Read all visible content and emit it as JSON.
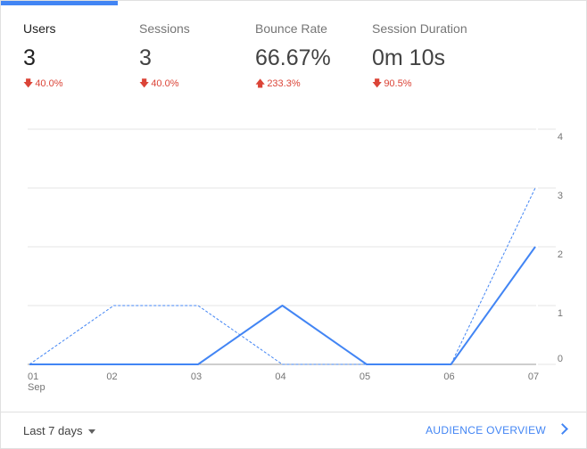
{
  "tabs": [
    {
      "label": "Users",
      "value": "3",
      "change": "40.0%",
      "direction": "down",
      "active": true
    },
    {
      "label": "Sessions",
      "value": "3",
      "change": "40.0%",
      "direction": "down",
      "active": false
    },
    {
      "label": "Bounce Rate",
      "value": "66.67%",
      "change": "233.3%",
      "direction": "up",
      "active": false
    },
    {
      "label": "Session Duration",
      "value": "0m 10s",
      "change": "90.5%",
      "direction": "down",
      "active": false
    }
  ],
  "chart_data": {
    "type": "line",
    "categories": [
      "01",
      "02",
      "03",
      "04",
      "05",
      "06",
      "07"
    ],
    "category_sublabel": "Sep",
    "y_ticks": [
      "0",
      "1",
      "2",
      "3",
      "4"
    ],
    "ylim": [
      0,
      4
    ],
    "grid": true,
    "series": [
      {
        "style": "solid",
        "color": "#4285f4",
        "values": [
          0,
          0,
          0,
          1,
          0,
          0,
          2
        ]
      },
      {
        "style": "dashed",
        "color": "#4285f4",
        "values": [
          0,
          1,
          1,
          0,
          0,
          0,
          3
        ]
      }
    ]
  },
  "footer": {
    "range_label": "Last 7 days",
    "overview_label": "AUDIENCE OVERVIEW"
  },
  "colors": {
    "accent": "#4285f4",
    "negative": "#db4437"
  }
}
